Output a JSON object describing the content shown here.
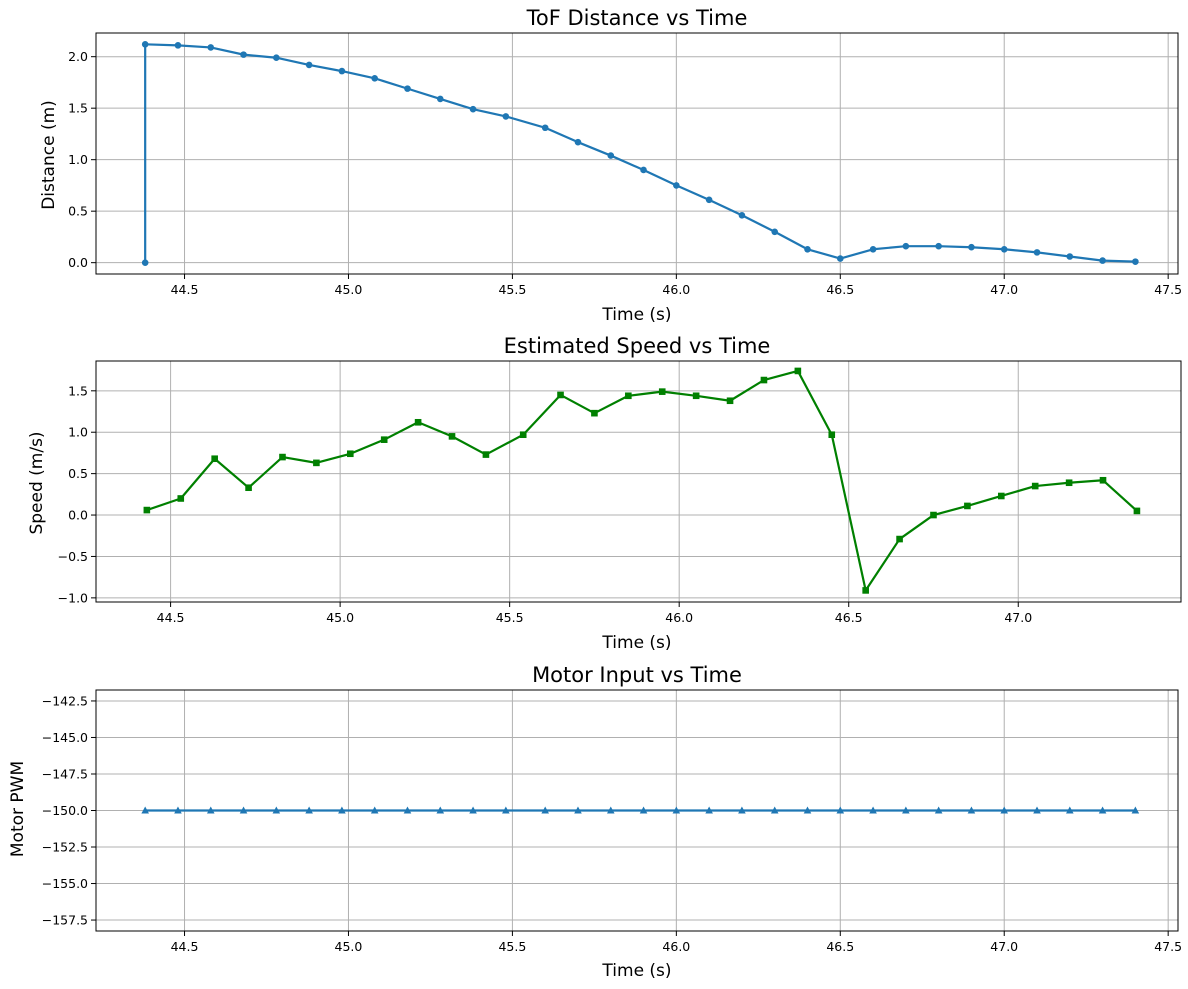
{
  "chart_data": [
    {
      "type": "line",
      "title": "ToF Distance vs Time",
      "xlabel": "Time (s)",
      "ylabel": "Distance (m)",
      "xlim": [
        44.23,
        47.53
      ],
      "ylim": [
        -0.11,
        2.23
      ],
      "xticks": [
        44.5,
        45.0,
        45.5,
        46.0,
        46.5,
        47.0,
        47.5
      ],
      "yticks": [
        0.0,
        0.5,
        1.0,
        1.5,
        2.0
      ],
      "grid": true,
      "color": "#1f77b4",
      "marker": "circle",
      "series": [
        {
          "x": [
            44.38,
            44.38,
            44.48,
            44.58,
            44.68,
            44.78,
            44.88,
            44.98,
            45.08,
            45.18,
            45.28,
            45.38,
            45.48,
            45.6,
            45.7,
            45.8,
            45.9,
            46.0,
            46.1,
            46.2,
            46.3,
            46.4,
            46.5,
            46.6,
            46.7,
            46.8,
            46.9,
            47.0,
            47.1,
            47.2,
            47.3,
            47.4
          ],
          "y": [
            0.0,
            2.12,
            2.11,
            2.09,
            2.02,
            1.99,
            1.92,
            1.86,
            1.79,
            1.69,
            1.59,
            1.49,
            1.42,
            1.31,
            1.17,
            1.04,
            0.9,
            0.75,
            0.61,
            0.46,
            0.3,
            0.13,
            0.04,
            0.13,
            0.16,
            0.16,
            0.15,
            0.13,
            0.1,
            0.06,
            0.02,
            0.01
          ]
        }
      ]
    },
    {
      "type": "line",
      "title": "Estimated Speed vs Time",
      "xlabel": "Time (s)",
      "ylabel": "Speed (m/s)",
      "xlim": [
        44.28,
        47.48
      ],
      "ylim": [
        -1.05,
        1.86
      ],
      "xticks": [
        44.5,
        45.0,
        45.5,
        46.0,
        46.5,
        47.0
      ],
      "yticks": [
        -1.0,
        -0.5,
        0.0,
        0.5,
        1.0,
        1.5
      ],
      "grid": true,
      "color": "#008000",
      "marker": "square",
      "series": [
        {
          "x": [
            44.43,
            44.53,
            44.63,
            44.73,
            44.83,
            44.93,
            45.03,
            45.13,
            45.23,
            45.33,
            45.43,
            45.54,
            45.65,
            45.75,
            45.85,
            45.95,
            46.05,
            46.15,
            46.25,
            46.35,
            46.45,
            46.55,
            46.65,
            46.75,
            46.85,
            46.95,
            47.05,
            47.15,
            47.25,
            47.35
          ],
          "y": [
            0.06,
            0.2,
            0.68,
            0.33,
            0.7,
            0.63,
            0.74,
            0.91,
            1.12,
            0.95,
            0.73,
            0.97,
            1.45,
            1.23,
            1.44,
            1.49,
            1.44,
            1.38,
            1.63,
            1.74,
            0.97,
            -0.91,
            -0.29,
            0.0,
            0.11,
            0.23,
            0.35,
            0.39,
            0.42,
            0.05
          ]
        }
      ]
    },
    {
      "type": "line",
      "title": "Motor Input vs Time",
      "xlabel": "Time (s)",
      "ylabel": "Motor PWM",
      "xlim": [
        44.23,
        47.53
      ],
      "ylim": [
        -158.25,
        -141.75
      ],
      "xticks": [
        44.5,
        45.0,
        45.5,
        46.0,
        46.5,
        47.0,
        47.5
      ],
      "yticks": [
        -142.5,
        -145.0,
        -147.5,
        -150.0,
        -152.5,
        -155.0,
        -157.5
      ],
      "grid": true,
      "color": "#1f77b4",
      "marker": "triangle",
      "series": [
        {
          "x": [
            44.38,
            44.48,
            44.58,
            44.68,
            44.78,
            44.88,
            44.98,
            45.08,
            45.18,
            45.28,
            45.38,
            45.48,
            45.6,
            45.7,
            45.8,
            45.9,
            46.0,
            46.1,
            46.2,
            46.3,
            46.4,
            46.5,
            46.6,
            46.7,
            46.8,
            46.9,
            47.0,
            47.1,
            47.2,
            47.3,
            47.4
          ],
          "y": [
            -150,
            -150,
            -150,
            -150,
            -150,
            -150,
            -150,
            -150,
            -150,
            -150,
            -150,
            -150,
            -150,
            -150,
            -150,
            -150,
            -150,
            -150,
            -150,
            -150,
            -150,
            -150,
            -150,
            -150,
            -150,
            -150,
            -150,
            -150,
            -150,
            -150,
            -150
          ]
        }
      ]
    }
  ]
}
